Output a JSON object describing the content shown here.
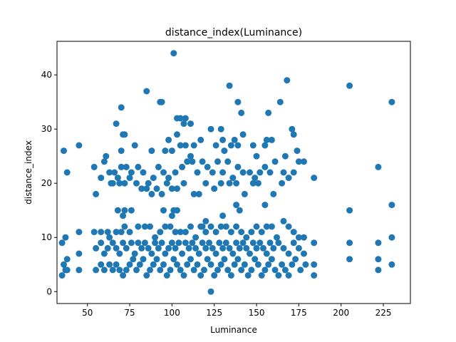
{
  "chart_data": {
    "type": "scatter",
    "title": "distance_index(Luminance)",
    "xlabel": "Luminance",
    "ylabel": "distance_index",
    "xlim": [
      32,
      241
    ],
    "ylim": [
      -2.2,
      46.2
    ],
    "xticks": [
      50,
      75,
      100,
      125,
      150,
      175,
      200,
      225
    ],
    "yticks": [
      0,
      10,
      20,
      30,
      40
    ],
    "grid": false,
    "legend": "none",
    "marker_color": "#1f77b4",
    "points": [
      [
        101,
        44
      ],
      [
        168,
        39
      ],
      [
        134,
        38
      ],
      [
        205,
        38
      ],
      [
        85,
        37
      ],
      [
        230,
        35
      ],
      [
        93,
        35
      ],
      [
        94,
        35
      ],
      [
        139,
        35
      ],
      [
        164,
        35
      ],
      [
        70,
        34
      ],
      [
        141,
        33
      ],
      [
        157,
        33
      ],
      [
        67,
        31
      ],
      [
        103,
        32
      ],
      [
        105,
        32
      ],
      [
        108,
        32
      ],
      [
        111,
        31
      ],
      [
        107,
        31
      ],
      [
        71,
        29
      ],
      [
        72,
        29
      ],
      [
        103,
        29
      ],
      [
        123,
        30
      ],
      [
        117,
        28
      ],
      [
        129,
        30
      ],
      [
        137,
        28
      ],
      [
        142,
        29
      ],
      [
        156,
        28
      ],
      [
        159,
        28
      ],
      [
        171,
        30
      ],
      [
        172,
        29
      ],
      [
        36,
        26
      ],
      [
        45,
        27
      ],
      [
        61,
        25
      ],
      [
        78,
        27
      ],
      [
        70,
        26
      ],
      [
        88,
        26
      ],
      [
        98,
        28
      ],
      [
        96,
        26
      ],
      [
        100,
        26
      ],
      [
        105,
        27
      ],
      [
        108,
        27
      ],
      [
        111,
        25
      ],
      [
        113,
        27
      ],
      [
        126,
        27
      ],
      [
        130,
        28
      ],
      [
        131,
        26
      ],
      [
        135,
        27
      ],
      [
        139,
        27
      ],
      [
        148,
        27
      ],
      [
        150,
        25
      ],
      [
        155,
        27
      ],
      [
        167,
        25
      ],
      [
        174,
        26
      ],
      [
        54,
        23
      ],
      [
        58,
        21
      ],
      [
        60,
        24
      ],
      [
        63,
        22
      ],
      [
        66,
        22
      ],
      [
        38,
        22
      ],
      [
        55,
        18
      ],
      [
        65,
        20
      ],
      [
        68,
        21
      ],
      [
        70,
        23
      ],
      [
        73,
        23
      ],
      [
        76,
        22
      ],
      [
        80,
        23
      ],
      [
        83,
        22
      ],
      [
        86,
        20
      ],
      [
        89,
        21
      ],
      [
        92,
        23
      ],
      [
        95,
        22
      ],
      [
        98,
        21
      ],
      [
        102,
        22
      ],
      [
        106,
        23
      ],
      [
        109,
        24
      ],
      [
        112,
        24
      ],
      [
        115,
        22
      ],
      [
        118,
        24
      ],
      [
        121,
        23
      ],
      [
        124,
        22
      ],
      [
        127,
        24
      ],
      [
        130,
        22
      ],
      [
        133,
        24
      ],
      [
        136,
        21
      ],
      [
        139,
        23
      ],
      [
        142,
        22
      ],
      [
        146,
        22
      ],
      [
        149,
        21
      ],
      [
        152,
        22
      ],
      [
        155,
        23
      ],
      [
        158,
        22
      ],
      [
        161,
        24
      ],
      [
        166,
        22
      ],
      [
        169,
        21
      ],
      [
        172,
        22
      ],
      [
        175,
        24
      ],
      [
        178,
        24
      ],
      [
        184,
        21
      ],
      [
        222,
        23
      ],
      [
        64,
        20
      ],
      [
        69,
        20
      ],
      [
        72,
        20
      ],
      [
        75,
        21
      ],
      [
        79,
        20
      ],
      [
        82,
        19
      ],
      [
        85,
        19
      ],
      [
        88,
        18
      ],
      [
        91,
        19
      ],
      [
        94,
        18
      ],
      [
        97,
        20
      ],
      [
        100,
        19
      ],
      [
        103,
        19
      ],
      [
        107,
        20
      ],
      [
        113,
        18
      ],
      [
        116,
        18
      ],
      [
        120,
        20
      ],
      [
        125,
        19
      ],
      [
        129,
        20
      ],
      [
        134,
        20
      ],
      [
        138,
        20
      ],
      [
        143,
        18
      ],
      [
        148,
        20
      ],
      [
        151,
        20
      ],
      [
        160,
        18
      ],
      [
        165,
        20
      ],
      [
        68,
        15
      ],
      [
        71,
        14
      ],
      [
        72,
        15
      ],
      [
        76,
        15
      ],
      [
        95,
        15
      ],
      [
        100,
        14
      ],
      [
        101,
        15
      ],
      [
        103,
        15
      ],
      [
        118,
        12
      ],
      [
        120,
        13
      ],
      [
        130,
        14
      ],
      [
        138,
        16
      ],
      [
        140,
        15
      ],
      [
        155,
        16
      ],
      [
        205,
        15
      ],
      [
        230,
        16
      ],
      [
        35,
        9
      ],
      [
        37,
        10
      ],
      [
        45,
        11
      ],
      [
        54,
        11
      ],
      [
        58,
        11
      ],
      [
        62,
        11
      ],
      [
        63,
        10
      ],
      [
        67,
        11
      ],
      [
        70,
        11
      ],
      [
        72,
        12
      ],
      [
        75,
        11
      ],
      [
        80,
        12
      ],
      [
        84,
        12
      ],
      [
        87,
        12
      ],
      [
        90,
        10
      ],
      [
        93,
        11
      ],
      [
        96,
        12
      ],
      [
        99,
        12
      ],
      [
        102,
        11
      ],
      [
        105,
        11
      ],
      [
        108,
        11
      ],
      [
        111,
        12
      ],
      [
        114,
        10
      ],
      [
        117,
        12
      ],
      [
        120,
        11
      ],
      [
        123,
        12
      ],
      [
        126,
        11
      ],
      [
        129,
        12
      ],
      [
        132,
        12
      ],
      [
        135,
        11
      ],
      [
        138,
        12
      ],
      [
        141,
        11
      ],
      [
        144,
        10
      ],
      [
        147,
        11
      ],
      [
        150,
        12
      ],
      [
        153,
        11
      ],
      [
        156,
        12
      ],
      [
        159,
        12
      ],
      [
        162,
        10
      ],
      [
        166,
        13
      ],
      [
        169,
        12
      ],
      [
        172,
        11
      ],
      [
        175,
        10
      ],
      [
        178,
        10
      ],
      [
        184,
        9
      ],
      [
        205,
        9
      ],
      [
        222,
        9
      ],
      [
        230,
        10
      ],
      [
        36,
        5
      ],
      [
        37,
        4
      ],
      [
        38,
        6
      ],
      [
        45,
        7
      ],
      [
        55,
        8
      ],
      [
        58,
        9
      ],
      [
        60,
        7
      ],
      [
        62,
        8
      ],
      [
        65,
        9
      ],
      [
        67,
        8
      ],
      [
        69,
        7
      ],
      [
        71,
        9
      ],
      [
        73,
        8
      ],
      [
        76,
        9
      ],
      [
        78,
        7
      ],
      [
        80,
        9
      ],
      [
        82,
        8
      ],
      [
        84,
        9
      ],
      [
        86,
        8
      ],
      [
        88,
        7
      ],
      [
        90,
        9
      ],
      [
        92,
        8
      ],
      [
        94,
        9
      ],
      [
        96,
        7
      ],
      [
        98,
        8
      ],
      [
        100,
        9
      ],
      [
        102,
        8
      ],
      [
        104,
        9
      ],
      [
        106,
        7
      ],
      [
        108,
        9
      ],
      [
        110,
        8
      ],
      [
        112,
        9
      ],
      [
        114,
        8
      ],
      [
        116,
        7
      ],
      [
        118,
        9
      ],
      [
        120,
        8
      ],
      [
        122,
        9
      ],
      [
        124,
        8
      ],
      [
        126,
        7
      ],
      [
        128,
        9
      ],
      [
        130,
        8
      ],
      [
        132,
        9
      ],
      [
        134,
        8
      ],
      [
        136,
        7
      ],
      [
        138,
        9
      ],
      [
        140,
        8
      ],
      [
        142,
        9
      ],
      [
        144,
        8
      ],
      [
        146,
        7
      ],
      [
        148,
        9
      ],
      [
        150,
        8
      ],
      [
        152,
        9
      ],
      [
        154,
        8
      ],
      [
        156,
        7
      ],
      [
        158,
        9
      ],
      [
        160,
        8
      ],
      [
        163,
        9
      ],
      [
        166,
        8
      ],
      [
        169,
        7
      ],
      [
        172,
        9
      ],
      [
        175,
        8
      ],
      [
        178,
        7
      ],
      [
        35,
        3
      ],
      [
        38,
        4
      ],
      [
        45,
        4
      ],
      [
        55,
        4
      ],
      [
        58,
        5
      ],
      [
        60,
        4
      ],
      [
        63,
        5
      ],
      [
        65,
        4
      ],
      [
        67,
        5
      ],
      [
        69,
        4
      ],
      [
        71,
        3
      ],
      [
        73,
        4
      ],
      [
        75,
        5
      ],
      [
        77,
        6
      ],
      [
        79,
        4
      ],
      [
        81,
        5
      ],
      [
        83,
        6
      ],
      [
        85,
        3
      ],
      [
        87,
        4
      ],
      [
        89,
        5
      ],
      [
        91,
        6
      ],
      [
        93,
        4
      ],
      [
        95,
        5
      ],
      [
        97,
        3
      ],
      [
        99,
        4
      ],
      [
        101,
        6
      ],
      [
        103,
        5
      ],
      [
        105,
        4
      ],
      [
        107,
        3
      ],
      [
        109,
        5
      ],
      [
        111,
        6
      ],
      [
        113,
        4
      ],
      [
        115,
        5
      ],
      [
        117,
        3
      ],
      [
        119,
        4
      ],
      [
        121,
        6
      ],
      [
        123,
        5
      ],
      [
        125,
        3
      ],
      [
        127,
        4
      ],
      [
        129,
        5
      ],
      [
        131,
        6
      ],
      [
        133,
        4
      ],
      [
        135,
        3
      ],
      [
        137,
        5
      ],
      [
        139,
        6
      ],
      [
        141,
        4
      ],
      [
        143,
        5
      ],
      [
        145,
        3
      ],
      [
        147,
        4
      ],
      [
        149,
        6
      ],
      [
        151,
        5
      ],
      [
        153,
        3
      ],
      [
        155,
        4
      ],
      [
        157,
        5
      ],
      [
        159,
        6
      ],
      [
        161,
        4
      ],
      [
        163,
        3
      ],
      [
        165,
        5
      ],
      [
        167,
        4
      ],
      [
        169,
        3
      ],
      [
        171,
        5
      ],
      [
        173,
        6
      ],
      [
        176,
        4
      ],
      [
        179,
        5
      ],
      [
        184,
        3
      ],
      [
        184,
        5
      ],
      [
        205,
        6
      ],
      [
        222,
        4
      ],
      [
        222,
        6
      ],
      [
        230,
        5
      ],
      [
        123,
        0
      ]
    ]
  }
}
